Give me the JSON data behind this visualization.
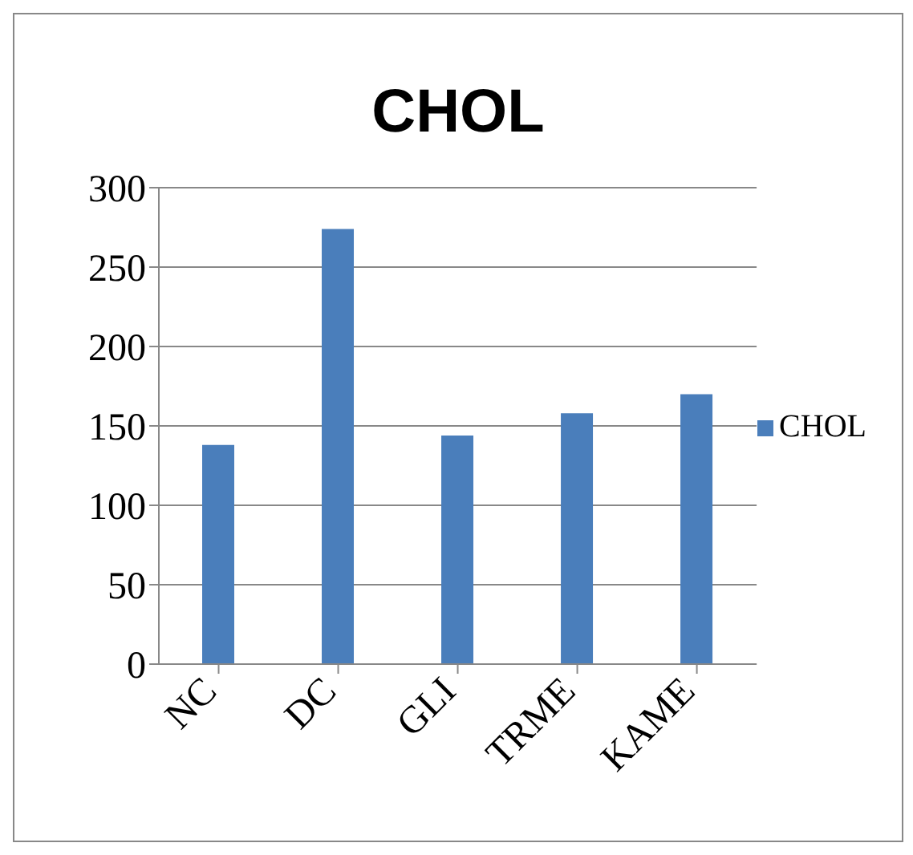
{
  "chart_data": {
    "type": "bar",
    "title": "CHOL",
    "categories": [
      "NC",
      "DC",
      "GLI",
      "TRME",
      "KAME"
    ],
    "series": [
      {
        "name": "CHOL",
        "color": "#4a7ebb",
        "values": [
          138,
          274,
          144,
          158,
          170
        ]
      }
    ],
    "ylim": [
      0,
      300
    ],
    "yticks": [
      0,
      50,
      100,
      150,
      200,
      250,
      300
    ],
    "grid": "y",
    "legend": "right"
  }
}
